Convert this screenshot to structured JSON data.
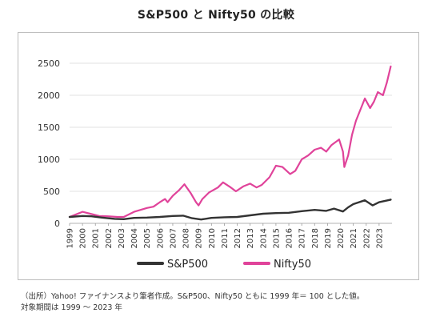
{
  "title": "S&P500 と Nifty50 の比較",
  "note_lines": [
    "（出所）Yahoo! ファイナンスより筆者作成。S&P500、Nifty50 ともに 1999 年＝ 100 とした値。",
    "対象期間は 1999 ～ 2023 年"
  ],
  "chart_data": {
    "type": "line",
    "title": "S&P500 と Nifty50 の比較",
    "xlabel": "",
    "ylabel": "",
    "x_ticks": [
      "1999",
      "2000",
      "2001",
      "2002",
      "2003",
      "2004",
      "2005",
      "2006",
      "2007",
      "2008",
      "2009",
      "2010",
      "2011",
      "2012",
      "2013",
      "2014",
      "2015",
      "2016",
      "2017",
      "2018",
      "2019",
      "2020",
      "2021",
      "2022",
      "2023"
    ],
    "y_ticks": [
      0,
      500,
      1000,
      1500,
      2000,
      2500
    ],
    "xlim": [
      1999,
      2024
    ],
    "ylim": [
      0,
      2700
    ],
    "grid": "horizontal",
    "legend_position": "bottom",
    "series": [
      {
        "name": "S&P500",
        "color": "#333333",
        "x": [
          1999,
          2000,
          2000.7,
          2001.5,
          2002.5,
          2003.2,
          2004,
          2005,
          2006,
          2007,
          2007.8,
          2008.5,
          2009.2,
          2010,
          2011,
          2012,
          2013,
          2014,
          2015,
          2016,
          2017,
          2018,
          2018.9,
          2019.5,
          2020.2,
          2020.6,
          2021,
          2021.9,
          2022.5,
          2023,
          2023.9
        ],
        "values": [
          100,
          115,
          110,
          90,
          70,
          65,
          85,
          90,
          100,
          115,
          120,
          80,
          60,
          85,
          95,
          100,
          125,
          150,
          160,
          165,
          190,
          210,
          195,
          230,
          185,
          250,
          300,
          360,
          280,
          330,
          370
        ]
      },
      {
        "name": "Nifty50",
        "color": "#e0439a",
        "x": [
          1999,
          1999.5,
          2000,
          2000.6,
          2001.3,
          2002,
          2002.7,
          2003.2,
          2004,
          2004.5,
          2005,
          2005.5,
          2006,
          2006.4,
          2006.6,
          2007,
          2007.5,
          2007.9,
          2008.4,
          2008.8,
          2009,
          2009.3,
          2009.8,
          2010.5,
          2010.9,
          2011.5,
          2011.9,
          2012.5,
          2013,
          2013.5,
          2013.9,
          2014.5,
          2015,
          2015.5,
          2016.1,
          2016.5,
          2017,
          2017.5,
          2018,
          2018.5,
          2018.9,
          2019.3,
          2019.9,
          2020.2,
          2020.3,
          2020.6,
          2020.9,
          2021.2,
          2021.6,
          2021.9,
          2022.3,
          2022.6,
          2022.9,
          2023.3,
          2023.6,
          2023.9
        ],
        "values": [
          100,
          140,
          180,
          150,
          115,
          110,
          100,
          100,
          180,
          210,
          240,
          260,
          330,
          380,
          330,
          430,
          520,
          610,
          470,
          330,
          280,
          380,
          480,
          560,
          640,
          560,
          500,
          580,
          620,
          560,
          600,
          720,
          900,
          880,
          770,
          820,
          1000,
          1060,
          1150,
          1180,
          1120,
          1220,
          1310,
          1120,
          880,
          1060,
          1380,
          1600,
          1800,
          1950,
          1800,
          1900,
          2050,
          2000,
          2200,
          2450
        ]
      }
    ]
  }
}
